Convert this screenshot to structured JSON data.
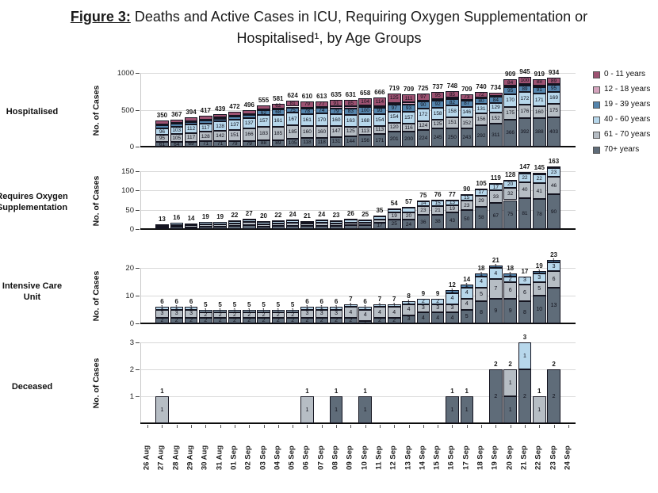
{
  "title": {
    "prefix": "Figure 3:",
    "line1": "Deaths and Active Cases in ICU, Requiring Oxygen Supplementation or",
    "line2": "Hospitalised¹, by Age Groups"
  },
  "legend": {
    "items": [
      {
        "label": "0 - 11 years",
        "color": "#9d5272"
      },
      {
        "label": "12 - 18 years",
        "color": "#d4a4bd"
      },
      {
        "label": "19 - 39 years",
        "color": "#5585ad"
      },
      {
        "label": "40 - 60 years",
        "color": "#b7d7eb"
      },
      {
        "label": "61 - 70 years",
        "color": "#b6bdc4"
      },
      {
        "label": "70+ years",
        "color": "#5f6c79"
      }
    ]
  },
  "x_axis": {
    "categories": [
      "26 Aug",
      "27 Aug",
      "28 Aug",
      "29 Aug",
      "30 Aug",
      "31 Aug",
      "01 Sep",
      "02 Sep",
      "03 Sep",
      "04 Sep",
      "05 Sep",
      "06 Sep",
      "07 Sep",
      "08 Sep",
      "09 Sep",
      "10 Sep",
      "11 Sep",
      "12 Sep",
      "13 Sep",
      "14 Sep",
      "15 Sep",
      "16 Sep",
      "17 Sep",
      "18 Sep",
      "19 Sep",
      "20 Sep",
      "21 Sep",
      "22 Sep",
      "23 Sep",
      "24 Sep"
    ],
    "data_start_category_index": 1
  },
  "chart_data": [
    {
      "type": "bar",
      "stacked": true,
      "row_label_lines": [
        "Hospitalised"
      ],
      "ylabel": "No. of Cases",
      "y_ticks": [
        0,
        500,
        1000
      ],
      "ylim": [
        0,
        1000
      ],
      "totals": [
        350,
        367,
        394,
        417,
        439,
        472,
        496,
        555,
        581,
        624,
        610,
        613,
        635,
        631,
        658,
        666,
        719,
        709,
        725,
        737,
        748,
        709,
        740,
        734,
        909,
        945,
        919,
        934
      ],
      "series": [
        {
          "name": "0 - 11 years",
          "values": [
            45,
            44,
            45,
            47,
            46,
            49,
            53,
            50,
            62,
            81,
            79,
            77,
            91,
            85,
            104,
            114,
            125,
            111,
            97,
            95,
            85,
            73,
            72,
            50,
            84,
            100,
            88,
            89
          ]
        },
        {
          "name": "12 - 18 years",
          "values": [
            13,
            12,
            12,
            13,
            12,
            14,
            15,
            15,
            16,
            11,
            14,
            14,
            27,
            31,
            17,
            21,
            22,
            32,
            18,
            22,
            22,
            8,
            9,
            8,
            19,
            16,
            21,
            3
          ]
        },
        {
          "name": "19 - 39 years",
          "values": [
            40,
            39,
            39,
            41,
            40,
            42,
            46,
            62,
            68,
            75,
            78,
            74,
            79,
            83,
            100,
            93,
            97,
            93,
            90,
            92,
            82,
            87,
            80,
            84,
            95,
            89,
            91,
            95
          ]
        },
        {
          "name": "40 - 60 years",
          "values": [
            96,
            103,
            112,
            117,
            128,
            137,
            137,
            157,
            161,
            167,
            161,
            170,
            160,
            163,
            168,
            154,
            154,
            157,
            172,
            158,
            158,
            146,
            131,
            129,
            170,
            172,
            171,
            169
          ]
        },
        {
          "name": "61 - 70 years",
          "values": [
            95,
            105,
            117,
            128,
            142,
            151,
            166,
            183,
            185,
            185,
            160,
            160,
            147,
            125,
            113,
            113,
            120,
            116,
            124,
            125,
            151,
            152,
            156,
            152,
            175,
            176,
            160,
            175
          ]
        },
        {
          "name": "70+ years",
          "values": [
            61,
            64,
            69,
            71,
            71,
            79,
            79,
            88,
            89,
            105,
            118,
            118,
            131,
            144,
            156,
            171,
            201,
            200,
            224,
            245,
            250,
            243,
            292,
            311,
            366,
            392,
            388,
            403
          ]
        }
      ]
    },
    {
      "type": "bar",
      "stacked": true,
      "row_label_lines": [
        "Requires Oxygen",
        "Supplementation"
      ],
      "ylabel": "No. of Cases",
      "y_ticks": [
        0,
        50,
        100,
        150
      ],
      "ylim": [
        0,
        150
      ],
      "totals": [
        13,
        16,
        14,
        19,
        19,
        22,
        27,
        20,
        22,
        24,
        21,
        24,
        23,
        26,
        25,
        35,
        54,
        57,
        75,
        76,
        77,
        90,
        105,
        119,
        128,
        147,
        145,
        163
      ],
      "series": [
        {
          "name": "19 - 39 years",
          "values": [
            0,
            0,
            0,
            0,
            0,
            1,
            1,
            1,
            1,
            1,
            1,
            1,
            1,
            1,
            1,
            1,
            2,
            2,
            2,
            2,
            2,
            2,
            1,
            2,
            1,
            4,
            4,
            4
          ]
        },
        {
          "name": "40 - 60 years",
          "values": [
            4,
            5,
            4,
            6,
            6,
            7,
            8,
            6,
            7,
            7,
            6,
            7,
            7,
            8,
            7,
            10,
            8,
            11,
            14,
            15,
            13,
            15,
            17,
            17,
            20,
            22,
            22,
            23
          ]
        },
        {
          "name": "61 - 70 years",
          "values": [
            4,
            5,
            5,
            6,
            6,
            6,
            8,
            6,
            6,
            7,
            6,
            7,
            6,
            7,
            7,
            7,
            19,
            20,
            23,
            21,
            19,
            23,
            29,
            33,
            32,
            40,
            41,
            46
          ]
        },
        {
          "name": "70+ years",
          "values": [
            5,
            6,
            5,
            7,
            7,
            8,
            10,
            7,
            8,
            9,
            8,
            9,
            9,
            10,
            10,
            17,
            25,
            24,
            36,
            38,
            43,
            50,
            58,
            67,
            75,
            81,
            78,
            90
          ]
        }
      ]
    },
    {
      "type": "bar",
      "stacked": true,
      "row_label_lines": [
        "Intensive Care",
        "Unit"
      ],
      "ylabel": "No. of Cases",
      "y_ticks": [
        0,
        10,
        20
      ],
      "ylim": [
        0,
        20
      ],
      "totals": [
        6,
        6,
        6,
        5,
        5,
        5,
        5,
        5,
        5,
        5,
        6,
        6,
        6,
        7,
        6,
        7,
        7,
        8,
        9,
        9,
        12,
        14,
        18,
        21,
        18,
        17,
        19,
        23
      ],
      "series": [
        {
          "name": "19 - 39 years",
          "values": [
            0,
            0,
            0,
            0,
            0,
            0,
            0,
            0,
            0,
            0,
            0,
            0,
            0,
            0,
            0,
            0,
            0,
            0,
            0,
            0,
            1,
            1,
            1,
            1,
            1,
            0,
            1,
            1
          ]
        },
        {
          "name": "40 - 60 years",
          "values": [
            1,
            1,
            1,
            1,
            1,
            1,
            1,
            1,
            1,
            1,
            1,
            1,
            1,
            1,
            1,
            1,
            1,
            1,
            2,
            2,
            4,
            4,
            4,
            4,
            2,
            3,
            3,
            3
          ]
        },
        {
          "name": "61 - 70 years",
          "values": [
            3,
            3,
            3,
            2,
            2,
            2,
            2,
            2,
            2,
            2,
            3,
            3,
            3,
            4,
            4,
            4,
            4,
            4,
            3,
            3,
            3,
            4,
            5,
            7,
            6,
            6,
            5,
            6
          ]
        },
        {
          "name": "70+ years",
          "values": [
            2,
            2,
            2,
            2,
            2,
            2,
            2,
            2,
            2,
            2,
            2,
            2,
            2,
            2,
            1,
            2,
            2,
            3,
            4,
            4,
            4,
            5,
            8,
            9,
            9,
            8,
            10,
            13
          ]
        }
      ]
    },
    {
      "type": "bar",
      "stacked": true,
      "row_label_lines": [
        "Deceased"
      ],
      "ylabel": "No. of Cases",
      "y_ticks": [
        1,
        2,
        3
      ],
      "ylim": [
        0,
        3
      ],
      "totals": [
        1,
        0,
        0,
        0,
        0,
        0,
        0,
        0,
        0,
        0,
        1,
        0,
        1,
        0,
        1,
        0,
        0,
        0,
        0,
        0,
        1,
        1,
        0,
        2,
        2,
        3,
        1,
        2
      ],
      "series": [
        {
          "name": "40 - 60 years",
          "values": [
            0,
            0,
            0,
            0,
            0,
            0,
            0,
            0,
            0,
            0,
            0,
            0,
            0,
            0,
            0,
            0,
            0,
            0,
            0,
            0,
            0,
            0,
            0,
            0,
            0,
            1,
            0,
            0
          ]
        },
        {
          "name": "61 - 70 years",
          "values": [
            1,
            0,
            0,
            0,
            0,
            0,
            0,
            0,
            0,
            0,
            1,
            0,
            0,
            0,
            0,
            0,
            0,
            0,
            0,
            0,
            0,
            0,
            0,
            0,
            1,
            0,
            1,
            0
          ]
        },
        {
          "name": "70+ years",
          "values": [
            0,
            0,
            0,
            0,
            0,
            0,
            0,
            0,
            0,
            0,
            0,
            0,
            1,
            0,
            1,
            0,
            0,
            0,
            0,
            0,
            1,
            1,
            0,
            2,
            1,
            2,
            0,
            2
          ]
        }
      ]
    }
  ]
}
